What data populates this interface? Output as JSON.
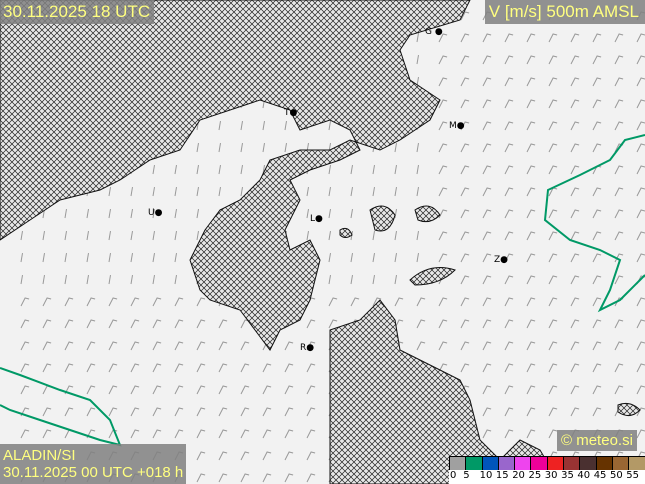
{
  "header": {
    "valid_time": "30.11.2025 18 UTC",
    "parameter": "V [m/s] 500m AMSL"
  },
  "footer": {
    "model": "ALADIN/SI",
    "run": "30.11.2025 00 UTC +018 h",
    "credit": "© meteo.si"
  },
  "legend": {
    "ticks": [
      "0",
      "5",
      "10",
      "15",
      "20",
      "25",
      "30",
      "35",
      "40",
      "45",
      "50",
      "55"
    ],
    "colors": [
      "#a0a0a0",
      "#009966",
      "#0055bb",
      "#9966cc",
      "#ee44ee",
      "#ee0099",
      "#ee2222",
      "#993333",
      "#4a3030",
      "#663300",
      "#996633",
      "#b39966"
    ]
  },
  "cities": [
    {
      "id": "G",
      "label": "G"
    },
    {
      "id": "T",
      "label": "T"
    },
    {
      "id": "M",
      "label": "M"
    },
    {
      "id": "U",
      "label": "U"
    },
    {
      "id": "L",
      "label": "L"
    },
    {
      "id": "Z",
      "label": "Z"
    },
    {
      "id": "R",
      "label": "R"
    }
  ],
  "colors": {
    "label_text": "#ffff80",
    "contour_5ms": "#009966",
    "barb": "#999999"
  }
}
